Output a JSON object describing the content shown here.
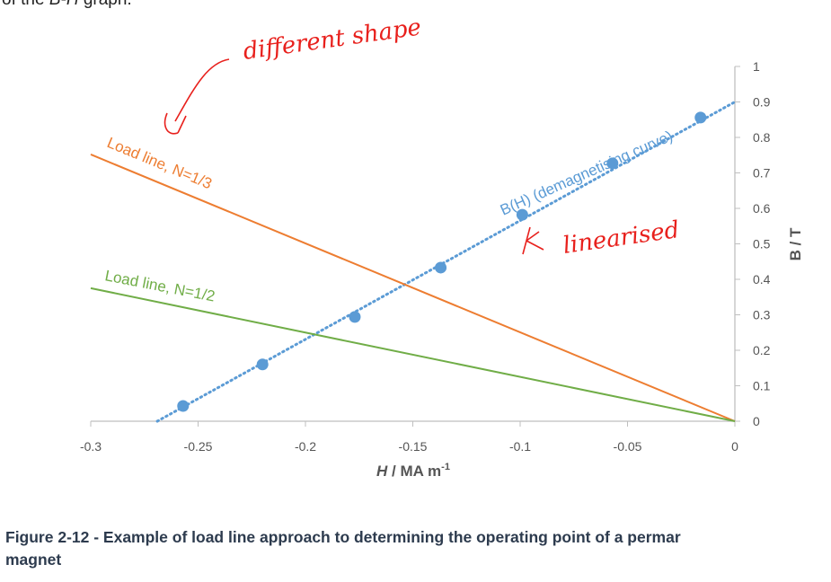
{
  "document": {
    "top_text_prefix": "of the ",
    "top_text_em": "B-H",
    "top_text_suffix": " graph.",
    "caption_line1": "Figure 2-12 - Example of load line approach to determining the operating point of a permar",
    "caption_line2": "magnet"
  },
  "annotations": {
    "note1": "different shape",
    "note2": "linearised",
    "color": "#e8201c"
  },
  "chart_data": {
    "type": "scatter",
    "xlabel_em": "H",
    "xlabel_rest": " / MA m",
    "xlabel_sup": "-1",
    "ylabel": "B / T",
    "xlim": [
      -0.3,
      0
    ],
    "ylim": [
      0,
      1
    ],
    "x_ticks": [
      "-0.3",
      "-0.25",
      "-0.2",
      "-0.15",
      "-0.1",
      "-0.05",
      "0"
    ],
    "y_ticks": [
      "0",
      "0.1",
      "0.2",
      "0.3",
      "0.4",
      "0.5",
      "0.6",
      "0.7",
      "0.8",
      "0.9",
      "1"
    ],
    "grid": false,
    "series": [
      {
        "name": "B(H) (demagnetising curve)",
        "color": "#5b9bd5",
        "points": [
          [
            -0.257,
            0.043
          ],
          [
            -0.22,
            0.16
          ],
          [
            -0.177,
            0.294
          ],
          [
            -0.137,
            0.433
          ],
          [
            -0.099,
            0.582
          ],
          [
            -0.057,
            0.727
          ],
          [
            -0.016,
            0.856
          ]
        ],
        "trendline": [
          [
            -0.269,
            0
          ],
          [
            0,
            0.9
          ]
        ]
      },
      {
        "name": "Load line, N=1/3",
        "color": "#ed7d31",
        "line": [
          [
            -0.3,
            0.752
          ],
          [
            0,
            0
          ]
        ]
      },
      {
        "name": "Load line, N=1/2",
        "color": "#70ad47",
        "line": [
          [
            -0.3,
            0.375
          ],
          [
            0,
            0
          ]
        ]
      }
    ]
  }
}
